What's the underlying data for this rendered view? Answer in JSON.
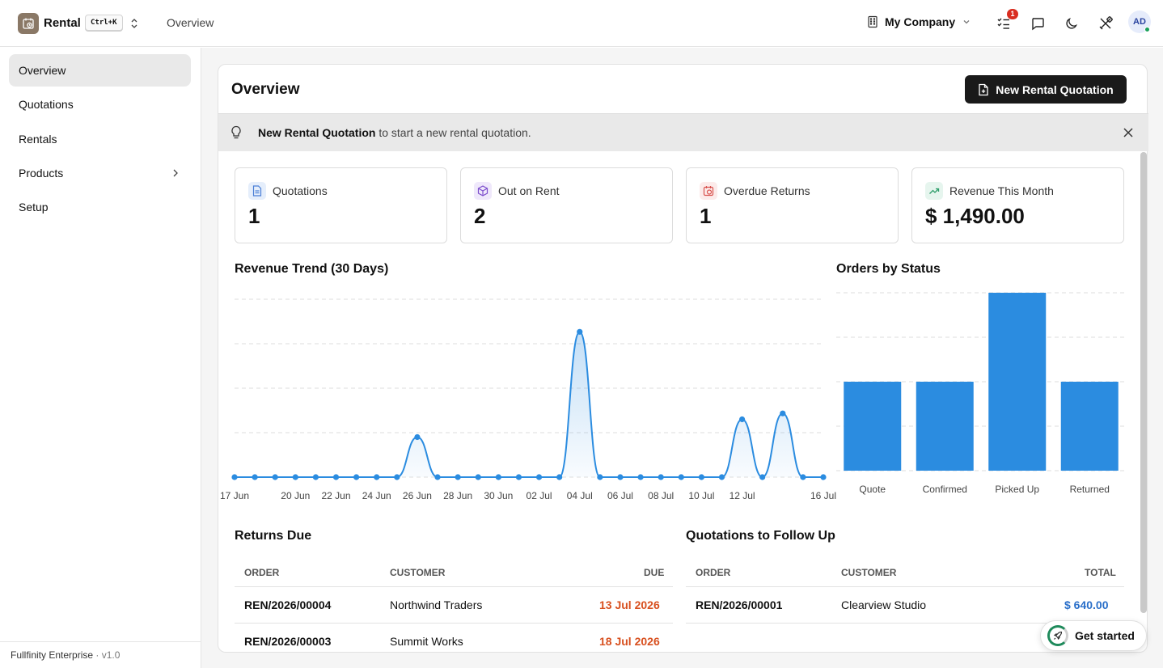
{
  "topbar": {
    "app_name": "Rental",
    "shortcut": "Ctrl+K",
    "breadcrumb": "Overview",
    "company": "My Company",
    "notification_count": "1",
    "avatar_initials": "AD"
  },
  "sidebar": {
    "items": [
      {
        "label": "Overview",
        "active": true
      },
      {
        "label": "Quotations"
      },
      {
        "label": "Rentals"
      },
      {
        "label": "Products",
        "has_children": true
      },
      {
        "label": "Setup"
      }
    ],
    "footer_brand": "Fullfinity Enterprise",
    "footer_version": " · v1.0"
  },
  "page": {
    "title": "Overview",
    "primary_button": "New Rental Quotation"
  },
  "banner": {
    "bold": "New Rental Quotation",
    "text": " to start a new rental quotation."
  },
  "stats": [
    {
      "label": "Quotations",
      "value": "1",
      "icon": "document-icon",
      "color": "#4a7fd6",
      "bg": "#e5eefb"
    },
    {
      "label": "Out on Rent",
      "value": "2",
      "icon": "box-icon",
      "color": "#7b4ccc",
      "bg": "#efe8fb"
    },
    {
      "label": "Overdue Returns",
      "value": "1",
      "icon": "calendar-clock-icon",
      "color": "#d9534f",
      "bg": "#fcebea"
    },
    {
      "label": "Revenue This Month",
      "value": "$ 1,490.00",
      "icon": "trending-up-icon",
      "color": "#2e9e6a",
      "bg": "#e6f5ee"
    }
  ],
  "revenue_chart_title": "Revenue Trend (30 Days)",
  "status_chart_title": "Orders by Status",
  "chart_data": [
    {
      "type": "area",
      "title": "Revenue Trend (30 Days)",
      "x": [
        "17 Jun",
        "18 Jun",
        "19 Jun",
        "20 Jun",
        "21 Jun",
        "22 Jun",
        "23 Jun",
        "24 Jun",
        "25 Jun",
        "26 Jun",
        "27 Jun",
        "28 Jun",
        "29 Jun",
        "30 Jun",
        "01 Jul",
        "02 Jul",
        "03 Jul",
        "04 Jul",
        "05 Jul",
        "06 Jul",
        "07 Jul",
        "08 Jul",
        "09 Jul",
        "10 Jul",
        "11 Jul",
        "12 Jul",
        "13 Jul",
        "14 Jul",
        "15 Jul",
        "16 Jul"
      ],
      "tick_labels": [
        {
          "i": 0,
          "label": "17 Jun"
        },
        {
          "i": 3,
          "label": "20 Jun"
        },
        {
          "i": 5,
          "label": "22 Jun"
        },
        {
          "i": 7,
          "label": "24 Jun"
        },
        {
          "i": 9,
          "label": "26 Jun"
        },
        {
          "i": 11,
          "label": "28 Jun"
        },
        {
          "i": 13,
          "label": "30 Jun"
        },
        {
          "i": 15,
          "label": "02 Jul"
        },
        {
          "i": 17,
          "label": "04 Jul"
        },
        {
          "i": 19,
          "label": "06 Jul"
        },
        {
          "i": 21,
          "label": "08 Jul"
        },
        {
          "i": 23,
          "label": "10 Jul"
        },
        {
          "i": 25,
          "label": "12 Jul"
        },
        {
          "i": 29,
          "label": "16 Jul"
        }
      ],
      "values": [
        0,
        0,
        0,
        0,
        0,
        0,
        0,
        0,
        0,
        270,
        0,
        0,
        0,
        0,
        0,
        0,
        0,
        980,
        0,
        0,
        0,
        0,
        0,
        0,
        0,
        390,
        0,
        430,
        0,
        0
      ],
      "ylim": [
        0,
        1200
      ],
      "grid": true,
      "color": "#2b8ce0"
    },
    {
      "type": "bar",
      "title": "Orders by Status",
      "categories": [
        "Quote",
        "Confirmed",
        "Picked Up",
        "Returned"
      ],
      "values": [
        1,
        1,
        2,
        1
      ],
      "ylim": [
        0,
        2
      ],
      "grid": true,
      "color": "#2b8ce0"
    }
  ],
  "returns_due": {
    "title": "Returns Due",
    "headers": [
      "ORDER",
      "CUSTOMER",
      "DUE"
    ],
    "rows": [
      {
        "order": "REN/2026/00004",
        "customer": "Northwind Traders",
        "due": "13 Jul 2026"
      },
      {
        "order": "REN/2026/00003",
        "customer": "Summit Works",
        "due": "18 Jul 2026"
      }
    ]
  },
  "quotations_follow": {
    "title": "Quotations to Follow Up",
    "headers": [
      "ORDER",
      "CUSTOMER",
      "TOTAL"
    ],
    "rows": [
      {
        "order": "REN/2026/00001",
        "customer": "Clearview Studio",
        "total": "$ 640.00"
      }
    ]
  },
  "get_started": "Get started"
}
